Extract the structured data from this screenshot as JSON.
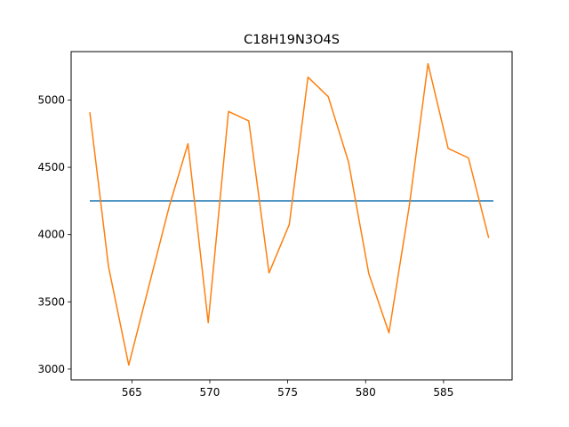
{
  "chart_data": {
    "type": "line",
    "title": "C18H19N3O4S",
    "xlabel": "",
    "ylabel": "",
    "xlim": [
      561.1,
      589.4
    ],
    "ylim": [
      2920,
      5360
    ],
    "xticks": [
      565,
      570,
      575,
      580,
      585
    ],
    "yticks": [
      3000,
      3500,
      4000,
      4500,
      5000
    ],
    "grid": false,
    "series": [
      {
        "color": "#1f77b4",
        "x": [
          562.3,
          588.2
        ],
        "y": [
          4250,
          4250
        ]
      },
      {
        "color": "#ff7f0e",
        "x": [
          562.3,
          563.5,
          564.8,
          566.1,
          567.4,
          568.6,
          569.9,
          571.2,
          572.5,
          573.8,
          575.1,
          576.3,
          577.6,
          578.9,
          580.2,
          581.5,
          582.8,
          584.0,
          585.3,
          586.6,
          587.9
        ],
        "y": [
          4910,
          3760,
          3030,
          3620,
          4210,
          4675,
          3345,
          4915,
          4845,
          3715,
          4075,
          5170,
          5025,
          4540,
          3710,
          3270,
          4210,
          5270,
          4640,
          4570,
          3975
        ]
      }
    ]
  }
}
